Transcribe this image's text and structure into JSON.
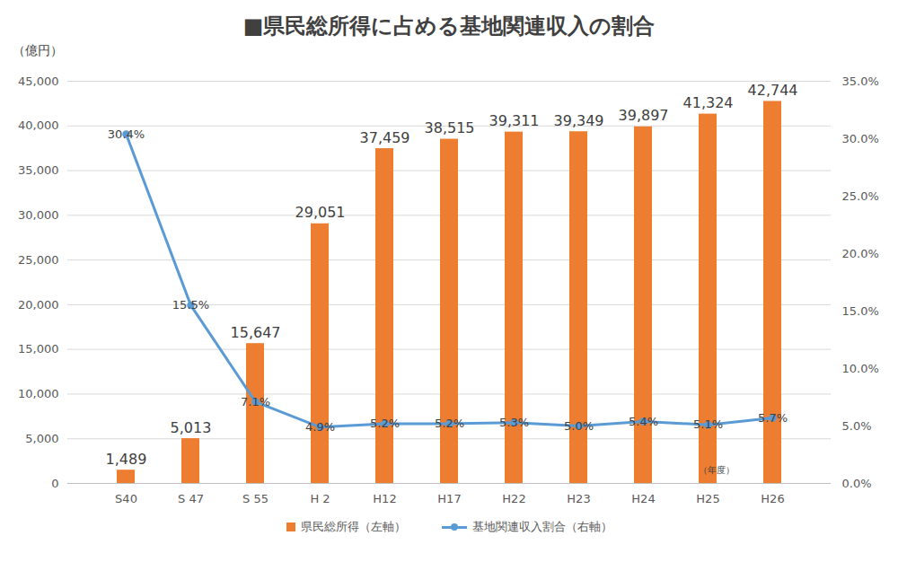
{
  "chart_data": {
    "type": "bar",
    "title": "■県民総所得に占める基地関連収入の割合",
    "y_label": "（億円）",
    "categories": [
      "S40",
      "S 47",
      "S 55",
      "H 2",
      "H12",
      "H17",
      "H22",
      "H23",
      "H24",
      "H25",
      "H26"
    ],
    "series": [
      {
        "name": "県民総所得（左軸）",
        "type": "bar",
        "color": "#ED7D31",
        "values": [
          1489,
          5013,
          15647,
          29051,
          37459,
          38515,
          39311,
          39349,
          39897,
          41324,
          42744
        ],
        "value_labels": [
          "1,489",
          "5,013",
          "15,647",
          "29,051",
          "37,459",
          "38,515",
          "39,311",
          "39,349",
          "39,897",
          "41,324",
          "42,744"
        ]
      },
      {
        "name": "基地関連収入割合（右軸）",
        "type": "line",
        "axis": "y2",
        "color": "#5B9BD5",
        "marker": "circle",
        "values": [
          30.4,
          15.5,
          7.1,
          4.9,
          5.2,
          5.2,
          5.3,
          5.0,
          5.4,
          5.1,
          5.7
        ],
        "value_labels": [
          "30.4%",
          "15.5%",
          "7.1%",
          "4.9%",
          "5.2%",
          "5.2%",
          "5.3%",
          "5.0%",
          "5.4%",
          "5.1%",
          "5.7%"
        ]
      }
    ],
    "ylim": [
      0,
      45000
    ],
    "yticks": [
      0,
      {
        "value": 5000,
        "label": "5,000"
      },
      {
        "value": 10000,
        "label": "10,000"
      },
      {
        "value": 15000,
        "label": "15,000"
      },
      {
        "value": 20000,
        "label": "20,000"
      },
      {
        "value": 25000,
        "label": "25,000"
      },
      {
        "value": 30000,
        "label": "30,000"
      },
      {
        "value": 35000,
        "label": "35,000"
      },
      {
        "value": 40000,
        "label": "40,000"
      },
      {
        "value": 45000,
        "label": "45,000"
      }
    ],
    "y2lim": [
      0,
      35
    ],
    "y2ticks": [
      {
        "value": 0,
        "label": "0.0%"
      },
      {
        "value": 5,
        "label": "5.0%"
      },
      {
        "value": 10,
        "label": "10.0%"
      },
      {
        "value": 15,
        "label": "15.0%"
      },
      {
        "value": 20,
        "label": "20.0%"
      },
      {
        "value": 25,
        "label": "25.0%"
      },
      {
        "value": 30,
        "label": "30.0%"
      },
      {
        "value": 35,
        "label": "35.0%"
      }
    ],
    "grid": true,
    "data_labels": true,
    "legend": "bottom",
    "annotation": "（年度）"
  }
}
